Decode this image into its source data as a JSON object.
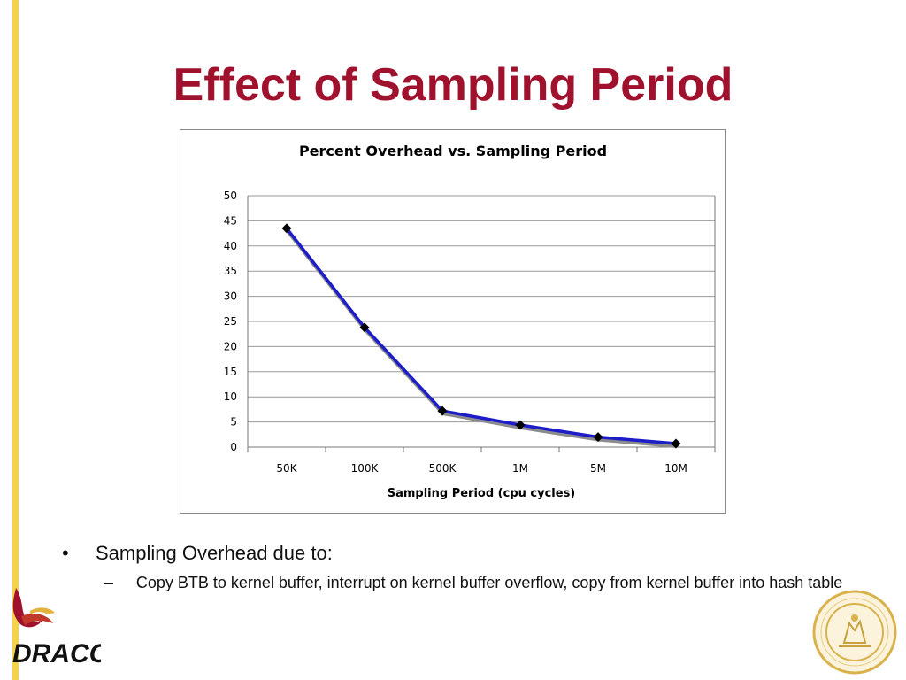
{
  "slide": {
    "title": "Effect of Sampling Period",
    "bullet": "Sampling Overhead due to:",
    "bullet_mark": "•",
    "sub_mark": "–",
    "sub_bullet": "Copy BTB to kernel buffer, interrupt on kernel buffer overflow, copy from kernel buffer into hash table",
    "logo_text": "DRACO"
  },
  "colors": {
    "title": "#a0112d",
    "accent_bar": "#f5d24a",
    "series_line": "#1c1cc8",
    "series_shadow": "#8c8c8c",
    "marker": "#000000"
  },
  "chart_data": {
    "type": "line",
    "title": "Percent Overhead vs. Sampling Period",
    "xlabel": "Sampling Period (cpu cycles)",
    "ylabel": "",
    "categories": [
      "50K",
      "100K",
      "500K",
      "1M",
      "5M",
      "10M"
    ],
    "series": [
      {
        "values": [
          43.5,
          23.8,
          7.2,
          4.4,
          2.0,
          0.7
        ]
      }
    ],
    "ylim": [
      0,
      50
    ],
    "yticks": [
      0,
      5,
      10,
      15,
      20,
      25,
      30,
      35,
      40,
      45,
      50
    ],
    "grid": true,
    "legend": "none"
  }
}
